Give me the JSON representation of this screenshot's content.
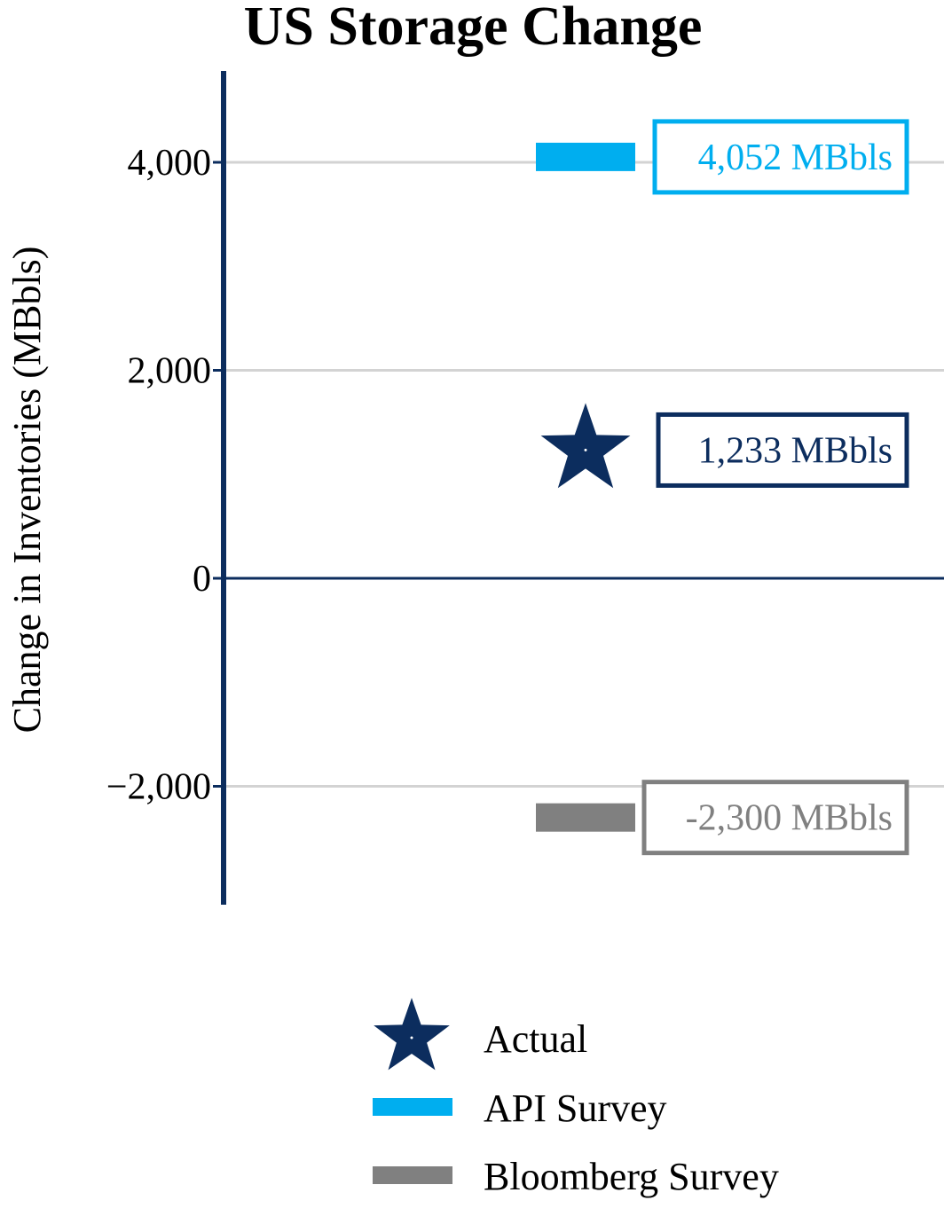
{
  "chart_data": {
    "type": "scatter",
    "title": "US Storage Change",
    "ylabel": "Change in Inventories (MBbls)",
    "xlabel": "",
    "ylim": [
      -3100,
      4900
    ],
    "yticks": [
      4000,
      2000,
      0,
      -2000
    ],
    "ytick_labels": [
      "4,000",
      "2,000",
      "0",
      "−2,000"
    ],
    "grid": true,
    "legend_position": "bottom",
    "series": [
      {
        "name": "Actual",
        "marker": "star",
        "value": 1233,
        "label": "1,233 MBbls",
        "color": "#0c2d5e"
      },
      {
        "name": "API Survey",
        "marker": "bar",
        "value": 4052,
        "label": "4,052 MBbls",
        "color": "#00aeef"
      },
      {
        "name": "Bloomberg Survey",
        "marker": "bar",
        "value": -2300,
        "label": "-2,300 MBbls",
        "color": "#808080"
      }
    ]
  }
}
